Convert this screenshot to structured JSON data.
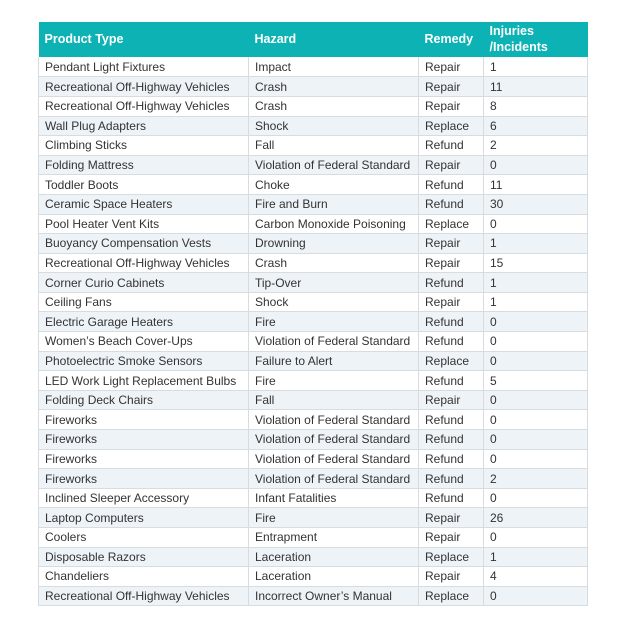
{
  "chart_data": {
    "type": "table",
    "columns": [
      "Product Type",
      "Hazard",
      "Remedy",
      "Injuries\n/Incidents"
    ],
    "rows": [
      [
        "Pendant Light Fixtures",
        "Impact",
        "Repair",
        "1"
      ],
      [
        "Recreational Off-Highway Vehicles",
        "Crash",
        "Repair",
        "11"
      ],
      [
        "Recreational Off-Highway Vehicles",
        "Crash",
        "Repair",
        "8"
      ],
      [
        "Wall Plug Adapters",
        "Shock",
        "Replace",
        "6"
      ],
      [
        "Climbing Sticks",
        "Fall",
        "Refund",
        "2"
      ],
      [
        "Folding Mattress",
        "Violation of Federal Standard",
        "Repair",
        "0"
      ],
      [
        "Toddler Boots",
        "Choke",
        "Refund",
        "11"
      ],
      [
        "Ceramic Space Heaters",
        "Fire and Burn",
        "Refund",
        "30"
      ],
      [
        "Pool Heater Vent Kits",
        "Carbon Monoxide Poisoning",
        "Replace",
        "0"
      ],
      [
        "Buoyancy Compensation Vests",
        "Drowning",
        "Repair",
        "1"
      ],
      [
        "Recreational Off-Highway Vehicles",
        "Crash",
        "Repair",
        "15"
      ],
      [
        "Corner Curio Cabinets",
        "Tip-Over",
        "Refund",
        "1"
      ],
      [
        "Ceiling Fans",
        "Shock",
        "Repair",
        "1"
      ],
      [
        "Electric Garage Heaters",
        "Fire",
        "Refund",
        "0"
      ],
      [
        "Women’s Beach Cover-Ups",
        "Violation of Federal Standard",
        "Refund",
        "0"
      ],
      [
        "Photoelectric Smoke Sensors",
        "Failure to Alert",
        "Replace",
        "0"
      ],
      [
        "LED Work Light Replacement Bulbs",
        "Fire",
        "Refund",
        "5"
      ],
      [
        "Folding Deck Chairs",
        "Fall",
        "Repair",
        "0"
      ],
      [
        "Fireworks",
        "Violation of Federal Standard",
        "Refund",
        "0"
      ],
      [
        "Fireworks",
        "Violation of Federal Standard",
        "Refund",
        "0"
      ],
      [
        "Fireworks",
        "Violation of Federal Standard",
        "Refund",
        "0"
      ],
      [
        "Fireworks",
        "Violation of Federal Standard",
        "Refund",
        "2"
      ],
      [
        "Inclined Sleeper Accessory",
        "Infant Fatalities",
        "Refund",
        "0"
      ],
      [
        "Laptop Computers",
        "Fire",
        "Repair",
        "26"
      ],
      [
        "Coolers",
        "Entrapment",
        "Repair",
        "0"
      ],
      [
        "Disposable Razors",
        "Laceration",
        "Replace",
        "1"
      ],
      [
        "Chandeliers",
        "Laceration",
        "Repair",
        "4"
      ],
      [
        "Recreational Off-Highway Vehicles",
        "Incorrect Owner’s Manual",
        "Replace",
        "0"
      ]
    ]
  },
  "style": {
    "header_bg": "#0db3b4",
    "header_text": "#ffffff",
    "row_bg": "#ffffff",
    "row_alt_bg": "#eef3f8",
    "border": "#d7dce0",
    "text": "#333333"
  }
}
